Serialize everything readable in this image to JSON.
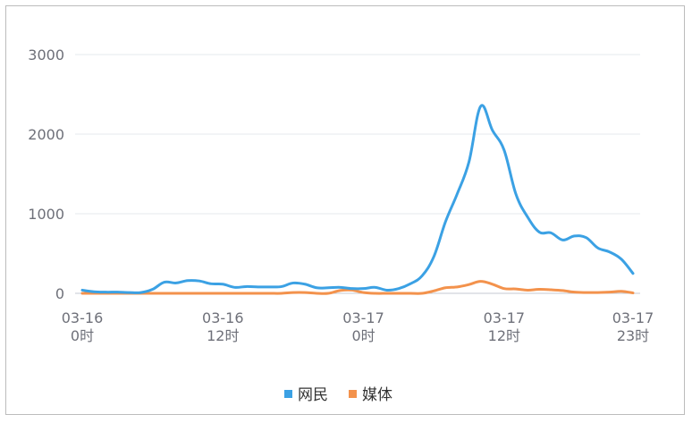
{
  "chart_data": {
    "type": "line",
    "x_ticks": [
      {
        "index": 0,
        "line1": "03-16",
        "line2": "0时"
      },
      {
        "index": 12,
        "line1": "03-16",
        "line2": "12时"
      },
      {
        "index": 24,
        "line1": "03-17",
        "line2": "0时"
      },
      {
        "index": 36,
        "line1": "03-17",
        "line2": "12时"
      },
      {
        "index": 47,
        "line1": "03-17",
        "line2": "23时"
      }
    ],
    "y_ticks": [
      "0",
      "1000",
      "2000",
      "3000"
    ],
    "ylim": [
      0,
      3000
    ],
    "grid": true,
    "legend_position": "bottom-center",
    "series": [
      {
        "name": "网民",
        "color": "#3ba1e4",
        "values": [
          40,
          20,
          15,
          15,
          10,
          10,
          50,
          140,
          130,
          160,
          155,
          120,
          115,
          75,
          85,
          80,
          80,
          85,
          130,
          115,
          70,
          70,
          75,
          60,
          60,
          75,
          40,
          60,
          120,
          220,
          460,
          900,
          1250,
          1650,
          2350,
          2050,
          1800,
          1250,
          960,
          770,
          760,
          670,
          720,
          700,
          570,
          520,
          430,
          250
        ]
      },
      {
        "name": "媒体",
        "color": "#f3924c",
        "values": [
          0,
          0,
          0,
          0,
          0,
          0,
          0,
          0,
          0,
          0,
          0,
          0,
          0,
          0,
          0,
          0,
          0,
          0,
          10,
          10,
          0,
          0,
          35,
          40,
          10,
          0,
          0,
          0,
          0,
          0,
          30,
          70,
          80,
          110,
          150,
          115,
          60,
          55,
          40,
          50,
          45,
          35,
          15,
          10,
          10,
          15,
          25,
          5
        ]
      }
    ]
  }
}
